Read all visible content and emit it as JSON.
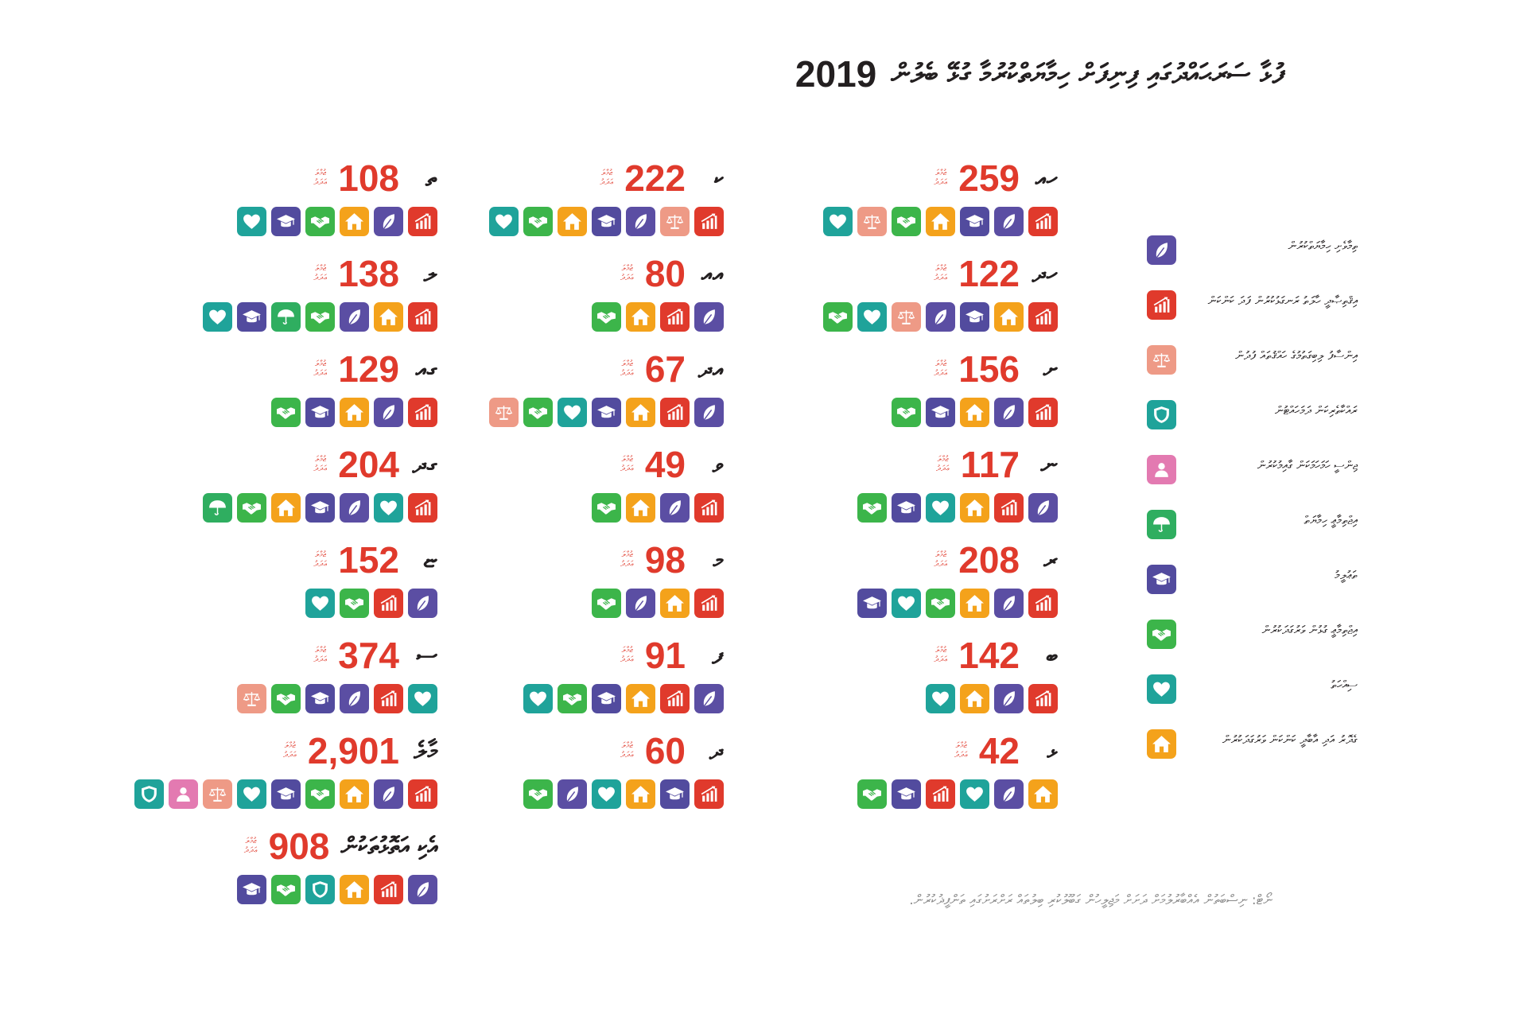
{
  "title": {
    "text": "ފުޅާ ސަރަޙައްދުގައި ފިނިފަށް ހިމާޔަތްކުރުމާ ގުޅޭ ބެލުން",
    "year": "2019"
  },
  "unit": {
    "line1": "ޖުމްލަ",
    "line2": "ޢަދަދު"
  },
  "icon_palette": {
    "environment": {
      "color": "#5b4ea3",
      "icon": "leaf-icon"
    },
    "economy": {
      "color": "#e03a2c",
      "icon": "bar-chart-icon"
    },
    "justice": {
      "color": "#ee9a86",
      "icon": "scales-icon"
    },
    "safety": {
      "color": "#1fa39a",
      "icon": "shield-icon"
    },
    "gender": {
      "color": "#e37ab1",
      "icon": "person-icon"
    },
    "social_protection": {
      "color": "#2fae60",
      "icon": "umbrella-icon"
    },
    "education": {
      "color": "#524b9e",
      "icon": "graduation-cap-icon"
    },
    "partnership": {
      "color": "#3cb54a",
      "icon": "handshake-icon"
    },
    "health": {
      "color": "#1fa39a",
      "icon": "heart-icon"
    },
    "housing": {
      "color": "#f4a21b",
      "icon": "house-icon"
    }
  },
  "legend": [
    {
      "key": "environment",
      "label": "ތިމާވެށި ހިމާޔަތްކުރުން"
    },
    {
      "key": "economy",
      "label": "އިޤްތިޞާދީ ހާލަތު ރަނގަޅުކުރުން ފަދަ ކަންކަން"
    },
    {
      "key": "justice",
      "label": "އިންސާފު ލިބިގަތުމުގެ ހައްޤުތައް ފުދުން"
    },
    {
      "key": "safety",
      "label": "ރައްކާތެރިކަން ދަމަހައްޓުން"
    },
    {
      "key": "gender",
      "label": "ޖިންސީ ހަމަހަމަކަން ގާއިމުކުރުން"
    },
    {
      "key": "social_protection",
      "label": "އިޖްތިމާޢީ ހިމާޔަތް"
    },
    {
      "key": "education",
      "label": "ތަޢުލީމު"
    },
    {
      "key": "partnership",
      "label": "އިޖްތިމާޢީ ގުޅުން ވަރުގަދަކުރުން"
    },
    {
      "key": "health",
      "label": "ސިއްހަތު"
    },
    {
      "key": "housing",
      "label": "ގެދޮރު އަދި އާބާދީ ކަންކަން ވަރުގަދަކުރުން"
    }
  ],
  "columns": [
    {
      "entries": [
        {
          "name": "ހއ",
          "value": "259",
          "icons": [
            "economy",
            "environment",
            "education",
            "housing",
            "partnership",
            "justice",
            "health"
          ]
        },
        {
          "name": "ހދ",
          "value": "122",
          "icons": [
            "economy",
            "housing",
            "education",
            "environment",
            "justice",
            "health",
            "partnership"
          ]
        },
        {
          "name": "ށ",
          "value": "156",
          "icons": [
            "economy",
            "environment",
            "housing",
            "education",
            "partnership"
          ]
        },
        {
          "name": "ނ",
          "value": "117",
          "icons": [
            "environment",
            "economy",
            "housing",
            "health",
            "education",
            "partnership"
          ]
        },
        {
          "name": "ރ",
          "value": "208",
          "icons": [
            "economy",
            "environment",
            "housing",
            "partnership",
            "health",
            "education"
          ]
        },
        {
          "name": "ބ",
          "value": "142",
          "icons": [
            "economy",
            "environment",
            "housing",
            "health"
          ]
        },
        {
          "name": "ޅ",
          "value": "42",
          "icons": [
            "housing",
            "environment",
            "health",
            "economy",
            "education",
            "partnership"
          ]
        }
      ]
    },
    {
      "entries": [
        {
          "name": "ކ",
          "value": "222",
          "icons": [
            "economy",
            "justice",
            "environment",
            "education",
            "housing",
            "partnership",
            "health"
          ]
        },
        {
          "name": "އއ",
          "value": "80",
          "icons": [
            "environment",
            "economy",
            "housing",
            "partnership"
          ]
        },
        {
          "name": "އދ",
          "value": "67",
          "icons": [
            "environment",
            "economy",
            "housing",
            "education",
            "health",
            "partnership",
            "justice"
          ]
        },
        {
          "name": "ވ",
          "value": "49",
          "icons": [
            "economy",
            "environment",
            "housing",
            "partnership"
          ]
        },
        {
          "name": "މ",
          "value": "98",
          "icons": [
            "economy",
            "housing",
            "environment",
            "partnership"
          ]
        },
        {
          "name": "ފ",
          "value": "91",
          "icons": [
            "environment",
            "economy",
            "housing",
            "education",
            "partnership",
            "health"
          ]
        },
        {
          "name": "ދ",
          "value": "60",
          "icons": [
            "economy",
            "education",
            "housing",
            "health",
            "environment",
            "partnership"
          ]
        }
      ]
    },
    {
      "entries": [
        {
          "name": "ތ",
          "value": "108",
          "icons": [
            "economy",
            "environment",
            "housing",
            "partnership",
            "education",
            "health"
          ]
        },
        {
          "name": "ލ",
          "value": "138",
          "icons": [
            "economy",
            "housing",
            "environment",
            "partnership",
            "social_protection",
            "education",
            "health"
          ]
        },
        {
          "name": "ގއ",
          "value": "129",
          "icons": [
            "economy",
            "environment",
            "housing",
            "education",
            "partnership"
          ]
        },
        {
          "name": "ގދ",
          "value": "204",
          "icons": [
            "economy",
            "health",
            "environment",
            "education",
            "housing",
            "partnership",
            "social_protection"
          ]
        },
        {
          "name": "ޏ",
          "value": "152",
          "icons": [
            "environment",
            "economy",
            "partnership",
            "health"
          ]
        },
        {
          "name": "ސ",
          "value": "374",
          "icons": [
            "health",
            "economy",
            "environment",
            "education",
            "partnership",
            "justice"
          ]
        },
        {
          "name": "މާލެ",
          "value": "2,901",
          "icons": [
            "economy",
            "environment",
            "housing",
            "partnership",
            "education",
            "health",
            "justice",
            "gender",
            "safety"
          ]
        },
        {
          "name": "އެކި އަތޮޅުތަކުން",
          "value": "908",
          "icons": [
            "environment",
            "economy",
            "housing",
            "safety",
            "partnership",
            "education"
          ]
        }
      ]
    }
  ],
  "footnote": "ނޯޓް: ނިސްބަތުން އެއްބާރުލުމަށް ދަށަށް މަޖިލީހުން ގަބޫލުކުރި ބިލުތައް ރަށްރަށުގައި ތަންފީޛުކުރުން."
}
